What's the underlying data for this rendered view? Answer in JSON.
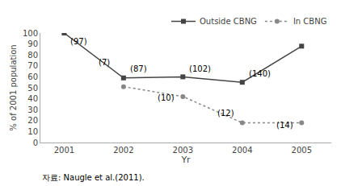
{
  "chart_data": {
    "type": "line",
    "x_label": "Yr",
    "y_label": "% of 2001 population",
    "source": "자료: Naugle et al.(2011).",
    "series": [
      {
        "name": "Outside CBNG",
        "color": "#444444",
        "marker": "square",
        "line_style": "solid",
        "x": [
          2001,
          2002,
          2003,
          2004,
          2005
        ],
        "values": [
          100,
          59,
          60,
          55,
          88
        ]
      },
      {
        "name": "In CBNG",
        "color": "#888888",
        "marker": "circle",
        "line_style": "dotted",
        "x": [
          2002,
          2003,
          2004,
          2005
        ],
        "values": [
          51,
          42,
          18,
          18
        ]
      }
    ],
    "annotations": [
      {
        "x": 2001.08,
        "y": 87,
        "text": "(97)"
      },
      {
        "x": 2002.08,
        "y": 62,
        "text": "(87)"
      },
      {
        "x": 2003.08,
        "y": 62,
        "text": "(102)"
      },
      {
        "x": 2004.08,
        "y": 57,
        "text": "(140)"
      },
      {
        "x": 2001.55,
        "y": 68,
        "text": "(7)"
      },
      {
        "x": 2002.55,
        "y": 35,
        "text": "(10)"
      },
      {
        "x": 2003.55,
        "y": 21,
        "text": "(12)"
      },
      {
        "x": 2004.55,
        "y": 10,
        "text": "(14)"
      }
    ],
    "xlim": [
      2000.6,
      2005.5
    ],
    "xticks": [
      2001,
      2002,
      2003,
      2004,
      2005
    ],
    "ylim": [
      0,
      100
    ],
    "yticks": [
      0,
      10,
      20,
      30,
      40,
      50,
      60,
      70,
      80,
      90,
      100
    ],
    "grid": false,
    "legend": "upper right"
  }
}
